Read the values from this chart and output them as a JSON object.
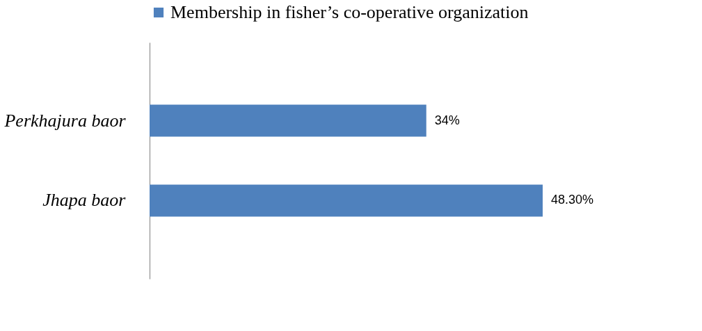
{
  "chart_data": {
    "type": "bar",
    "orientation": "horizontal",
    "categories": [
      "Perkhajura baor",
      "Jhapa baor"
    ],
    "legend": "top",
    "series": [
      {
        "name": "Membership in fisher’s co-operative organization",
        "color": "#4f81bd",
        "values": [
          34,
          48.3
        ],
        "value_labels": [
          "34%",
          "48.30%"
        ]
      }
    ]
  }
}
